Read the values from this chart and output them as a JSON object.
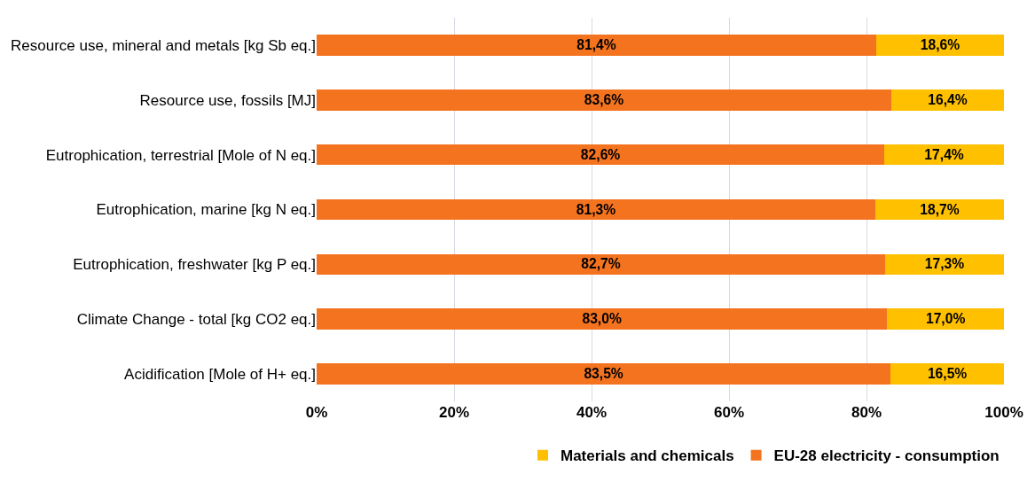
{
  "chart_data": {
    "type": "bar",
    "orientation": "horizontal",
    "stacked": true,
    "categories": [
      "Resource use, mineral and metals [kg Sb eq.]",
      "Resource use, fossils [MJ]",
      "Eutrophication, terrestrial [Mole of N eq.]",
      "Eutrophication, marine [kg N eq.]",
      "Eutrophication, freshwater [kg P eq.]",
      "Climate Change - total [kg CO2 eq.]",
      "Acidification [Mole of H+ eq.]"
    ],
    "series": [
      {
        "name": "EU-28 electricity - consumption",
        "color": "#f4731f",
        "values": [
          81.4,
          83.6,
          82.6,
          81.3,
          82.7,
          83.0,
          83.5
        ],
        "value_labels": [
          "81,4%",
          "83,6%",
          "82,6%",
          "81,3%",
          "82,7%",
          "83,0%",
          "83,5%"
        ]
      },
      {
        "name": "Materials and chemicals",
        "color": "#ffc000",
        "values": [
          18.6,
          16.4,
          17.4,
          18.7,
          17.3,
          17.0,
          16.5
        ],
        "value_labels": [
          "18,6%",
          "16,4%",
          "17,4%",
          "18,7%",
          "17,3%",
          "17,0%",
          "16,5%"
        ]
      }
    ],
    "xlim": [
      0,
      100
    ],
    "xticks": [
      {
        "value": 0,
        "label": "0%"
      },
      {
        "value": 20,
        "label": "20%"
      },
      {
        "value": 40,
        "label": "40%"
      },
      {
        "value": 60,
        "label": "60%"
      },
      {
        "value": 80,
        "label": "80%"
      },
      {
        "value": 100,
        "label": "100%"
      }
    ],
    "grid": "x",
    "legend": "bottom right"
  }
}
